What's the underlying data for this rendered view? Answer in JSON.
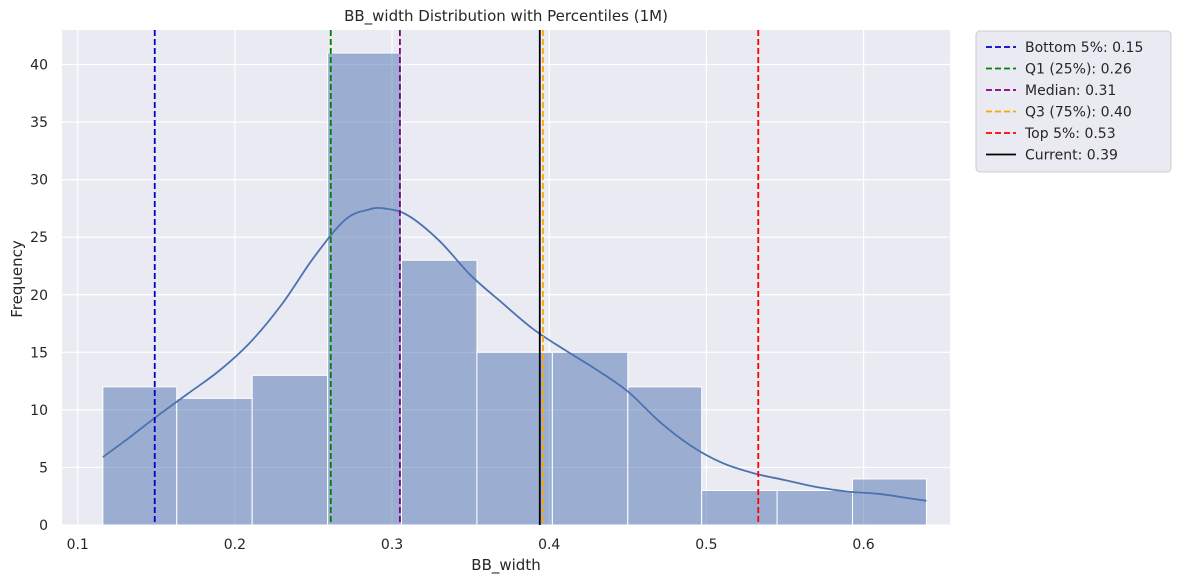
{
  "chart_data": {
    "type": "histogram",
    "title": "BB_width Distribution with Percentiles (1M)",
    "xlabel": "BB_width",
    "ylabel": "Frequency",
    "xlim": [
      0.09,
      0.655
    ],
    "ylim": [
      0,
      43
    ],
    "x_ticks": [
      0.1,
      0.2,
      0.3,
      0.4,
      0.5,
      0.6
    ],
    "x_tick_labels": [
      "0.1",
      "0.2",
      "0.3",
      "0.4",
      "0.5",
      "0.6"
    ],
    "y_ticks": [
      0,
      5,
      10,
      15,
      20,
      25,
      30,
      35,
      40
    ],
    "y_tick_labels": [
      "0",
      "5",
      "10",
      "15",
      "20",
      "25",
      "30",
      "35",
      "40"
    ],
    "grid": true,
    "background": "#eaeaf2",
    "bins": [
      {
        "x0": 0.116,
        "x1": 0.163,
        "count": 12
      },
      {
        "x0": 0.163,
        "x1": 0.211,
        "count": 11
      },
      {
        "x0": 0.211,
        "x1": 0.259,
        "count": 13
      },
      {
        "x0": 0.259,
        "x1": 0.306,
        "count": 41
      },
      {
        "x0": 0.306,
        "x1": 0.354,
        "count": 23
      },
      {
        "x0": 0.354,
        "x1": 0.402,
        "count": 15
      },
      {
        "x0": 0.402,
        "x1": 0.45,
        "count": 15
      },
      {
        "x0": 0.45,
        "x1": 0.497,
        "count": 12
      },
      {
        "x0": 0.497,
        "x1": 0.545,
        "count": 3
      },
      {
        "x0": 0.545,
        "x1": 0.593,
        "count": 3
      },
      {
        "x0": 0.593,
        "x1": 0.64,
        "count": 4
      }
    ],
    "bar_color": "#4c72b0",
    "kde": {
      "color": "#4c72b0",
      "points": [
        [
          0.116,
          5.9
        ],
        [
          0.13,
          7.3
        ],
        [
          0.15,
          9.4
        ],
        [
          0.17,
          11.4
        ],
        [
          0.19,
          13.4
        ],
        [
          0.21,
          15.9
        ],
        [
          0.23,
          19.2
        ],
        [
          0.25,
          23.2
        ],
        [
          0.27,
          26.5
        ],
        [
          0.285,
          27.4
        ],
        [
          0.295,
          27.5
        ],
        [
          0.31,
          26.9
        ],
        [
          0.33,
          24.7
        ],
        [
          0.35,
          21.7
        ],
        [
          0.37,
          19.3
        ],
        [
          0.39,
          17.0
        ],
        [
          0.41,
          15.2
        ],
        [
          0.43,
          13.5
        ],
        [
          0.45,
          11.6
        ],
        [
          0.47,
          9.0
        ],
        [
          0.49,
          6.9
        ],
        [
          0.51,
          5.4
        ],
        [
          0.53,
          4.5
        ],
        [
          0.55,
          3.9
        ],
        [
          0.57,
          3.3
        ],
        [
          0.59,
          2.9
        ],
        [
          0.61,
          2.7
        ],
        [
          0.63,
          2.3
        ],
        [
          0.64,
          2.1
        ]
      ]
    },
    "vlines": [
      {
        "label": "Bottom 5%: 0.15",
        "x": 0.149,
        "color": "#0000cc",
        "dashed": true
      },
      {
        "label": "Q1 (25%): 0.26",
        "x": 0.261,
        "color": "#008000",
        "dashed": true
      },
      {
        "label": "Median: 0.31",
        "x": 0.305,
        "color": "#800080",
        "dashed": true
      },
      {
        "label": "Q3 (75%): 0.40",
        "x": 0.396,
        "color": "#ffa500",
        "dashed": true
      },
      {
        "label": "Top 5%: 0.53",
        "x": 0.533,
        "color": "#ff0000",
        "dashed": true
      },
      {
        "label": "Current: 0.39",
        "x": 0.394,
        "color": "#000000",
        "dashed": false
      }
    ],
    "legend_position": "outside-top-right"
  }
}
